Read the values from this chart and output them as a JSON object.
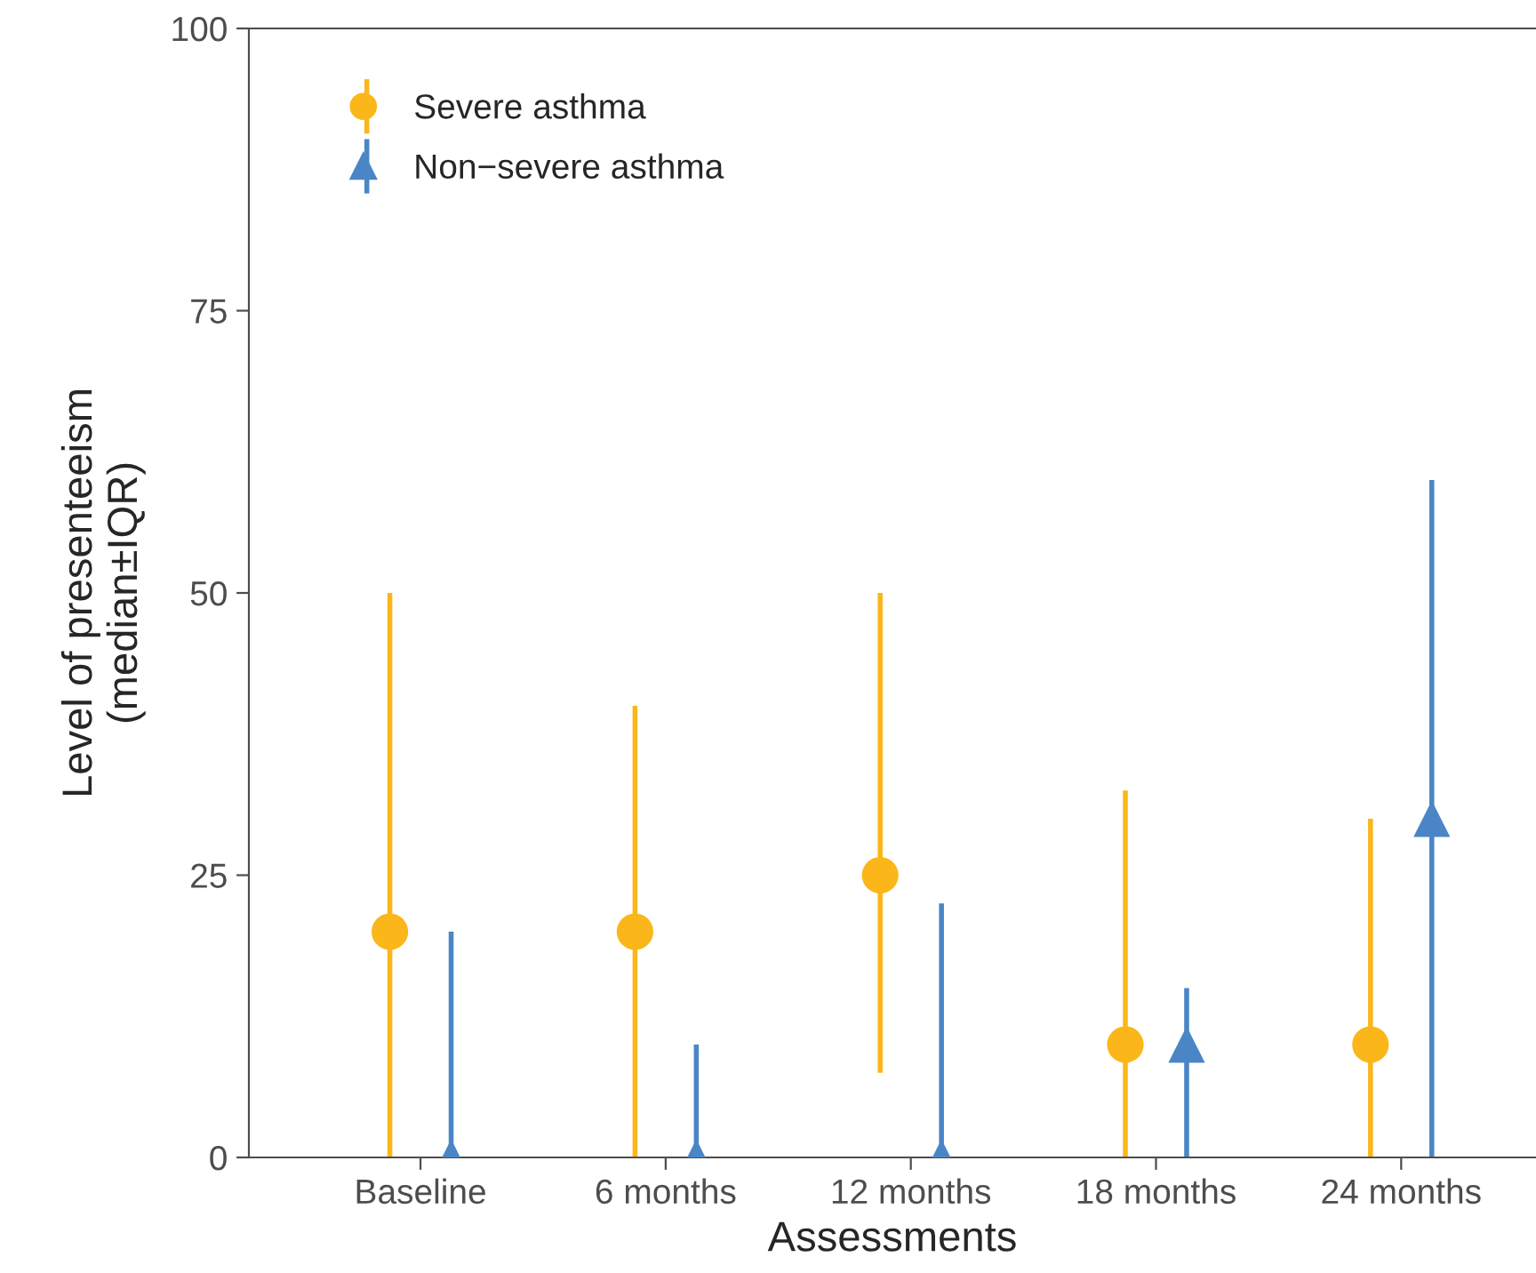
{
  "chart_data": {
    "type": "scatter",
    "xlabel": "Assessments",
    "ylabel": "Level of presenteeism\n(median±IQR)",
    "categories": [
      "Baseline",
      "6 months",
      "12 months",
      "18 months",
      "24 months"
    ],
    "series": [
      {
        "name": "Severe asthma",
        "color": "#fbb619",
        "marker": "circle",
        "values": [
          20,
          20,
          25,
          10,
          10
        ],
        "errors": [
          [
            0,
            50
          ],
          [
            0,
            40
          ],
          [
            7.5,
            50
          ],
          [
            0,
            32.5
          ],
          [
            0,
            30
          ]
        ]
      },
      {
        "name": "Non−severe asthma",
        "color": "#4a86c5",
        "marker": "triangle",
        "values": [
          0,
          0,
          0,
          10,
          30
        ],
        "errors": [
          [
            0,
            20
          ],
          [
            0,
            10
          ],
          [
            0,
            22.5
          ],
          [
            0,
            15
          ],
          [
            0,
            60
          ]
        ]
      }
    ],
    "ylim": [
      0,
      100
    ],
    "yticks": [
      0,
      25,
      50,
      75,
      100
    ],
    "grid": false,
    "legend": "top left"
  }
}
